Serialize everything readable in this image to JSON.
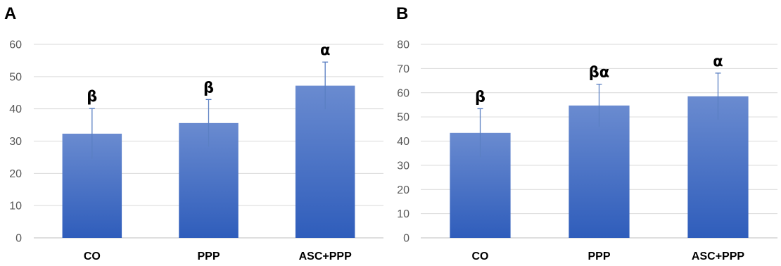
{
  "colors": {
    "bar_top": "#6a8bd0",
    "bar_bottom": "#2f5dbb",
    "error_bar": "#5a7fc2",
    "gridline": "#d9d9d9",
    "axis": "#bfbfbf",
    "tick_text": "#595959"
  },
  "chart_data": [
    {
      "type": "bar",
      "panel_label": "A",
      "categories": [
        "CO",
        "PPP",
        "ASC+PPP"
      ],
      "values": [
        32.3,
        35.6,
        47.2
      ],
      "error": [
        7.8,
        7.3,
        7.3
      ],
      "significance": [
        "β",
        "β",
        "α"
      ],
      "ylim": [
        0,
        60
      ],
      "yticks": [
        "0",
        "10",
        "20",
        "30",
        "40",
        "50",
        "60"
      ],
      "xlabel": "",
      "ylabel": "",
      "grid": true,
      "legend": "none"
    },
    {
      "type": "bar",
      "panel_label": "B",
      "categories": [
        "CO",
        "PPP",
        "ASC+PPP"
      ],
      "values": [
        43.4,
        54.7,
        58.5
      ],
      "error": [
        10.0,
        8.8,
        9.6
      ],
      "significance": [
        "β",
        "βα",
        "α"
      ],
      "ylim": [
        0,
        80
      ],
      "yticks": [
        "0",
        "10",
        "20",
        "30",
        "40",
        "50",
        "60",
        "70",
        "80"
      ],
      "xlabel": "",
      "ylabel": "",
      "grid": true,
      "legend": "none"
    }
  ]
}
